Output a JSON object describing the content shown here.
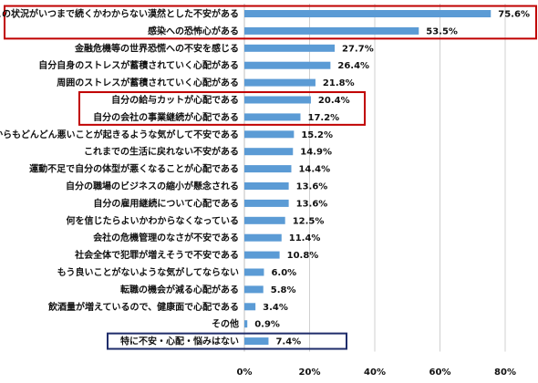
{
  "chart_data": {
    "type": "bar",
    "orientation": "horizontal",
    "categories": [
      "この状況がいつまで続くかわからない漠然とした不安がある",
      "感染への恐怖心がある",
      "金融危機等の世界恐慌への不安を感じる",
      "自分自身のストレスが蓄積されていく心配がある",
      "周囲のストレスが蓄積されていく心配がある",
      "自分の給与カットが心配である",
      "自分の会社の事業継続が心配である",
      "これからもどんどん悪いことが起きるような気がして不安である",
      "これまでの生活に戻れない不安がある",
      "運動不足で自分の体型が悪くなることが心配である",
      "自分の職場のビジネスの縮小が懸念される",
      "自分の雇用継続について心配である",
      "何を信じたらよいかわからなくなっている",
      "会社の危機管理のなさが不安である",
      "社会全体で犯罪が増えそうで不安である",
      "もう良いことがないような気がしてならない",
      "転職の機会が減る心配がある",
      "飲酒量が増えているので、健康面で心配である",
      "その他",
      "特に不安・心配・悩みはない"
    ],
    "values": [
      75.6,
      53.5,
      27.7,
      26.4,
      21.8,
      20.4,
      17.2,
      15.2,
      14.9,
      14.4,
      13.6,
      13.6,
      12.5,
      11.4,
      10.8,
      6.0,
      5.8,
      3.4,
      0.9,
      7.4
    ],
    "value_labels": [
      "75.6%",
      "53.5%",
      "27.7%",
      "26.4%",
      "21.8%",
      "20.4%",
      "17.2%",
      "15.2%",
      "14.9%",
      "14.4%",
      "13.6%",
      "13.6%",
      "12.5%",
      "11.4%",
      "10.8%",
      "6.0%",
      "5.8%",
      "3.4%",
      "0.9%",
      "7.4%"
    ],
    "xlim": [
      0,
      80
    ],
    "xticks": [
      0,
      20,
      40,
      60,
      80
    ],
    "xtick_labels": [
      "0%",
      "20%",
      "40%",
      "60%",
      "80%"
    ],
    "grid": true,
    "bar_color": "#5b9bd5",
    "highlight_boxes": [
      {
        "rows": [
          0,
          1
        ],
        "color": "#c00000"
      },
      {
        "rows": [
          5,
          6
        ],
        "color": "#c00000"
      },
      {
        "rows": [
          19
        ],
        "color": "#1f2d6b"
      }
    ]
  }
}
